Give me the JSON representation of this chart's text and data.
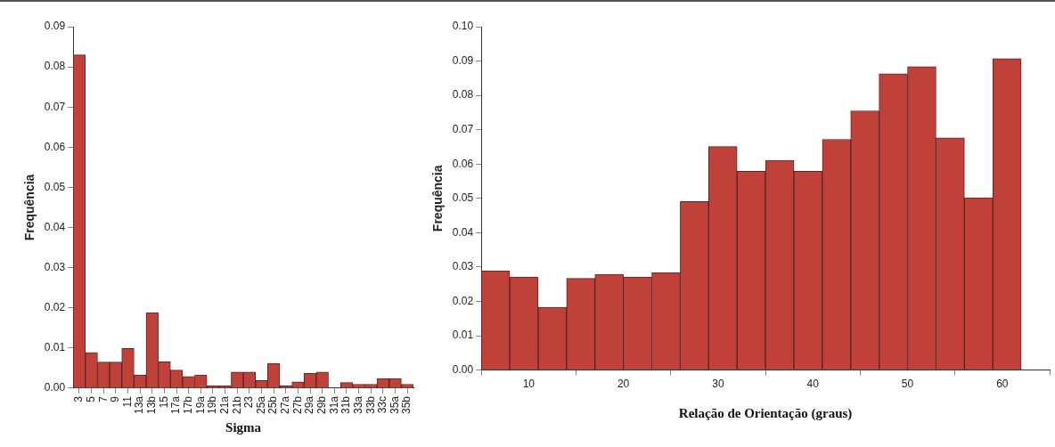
{
  "chart_data": [
    {
      "type": "bar",
      "xlabel": "Sigma",
      "ylabel": "Frequência",
      "color": "#c0403a",
      "grid": false,
      "legend": false,
      "categories": [
        "3",
        "5",
        "7",
        "9",
        "11",
        "13a",
        "13b",
        "15",
        "17a",
        "17b",
        "19a",
        "19b",
        "21a",
        "21b",
        "23",
        "25a",
        "25b",
        "27a",
        "27b",
        "29a",
        "29b",
        "31a",
        "31b",
        "33a",
        "33b",
        "33c",
        "35a",
        "35b"
      ],
      "values": [
        0.083,
        0.0089,
        0.0065,
        0.0065,
        0.0099,
        0.0033,
        0.0188,
        0.0066,
        0.0045,
        0.0029,
        0.0033,
        0.0006,
        0.0006,
        0.004,
        0.004,
        0.0019,
        0.0062,
        0.0006,
        0.0016,
        0.0037,
        0.004,
        0,
        0.0014,
        0.001,
        0.001,
        0.0024,
        0.0024,
        0.001
      ],
      "ylim": [
        0,
        0.09
      ],
      "yticks": [
        {
          "value": 0,
          "label": "0.00"
        },
        {
          "value": 0.01,
          "label": "0.01"
        },
        {
          "value": 0.02,
          "label": "0.02"
        },
        {
          "value": 0.03,
          "label": "0.03"
        },
        {
          "value": 0.04,
          "label": "0.04"
        },
        {
          "value": 0.05,
          "label": "0.05"
        },
        {
          "value": 0.06,
          "label": "0.06"
        },
        {
          "value": 0.07,
          "label": "0.07"
        },
        {
          "value": 0.08,
          "label": "0.08"
        },
        {
          "value": 0.09,
          "label": "0.09"
        }
      ]
    },
    {
      "type": "histogram",
      "xlabel": "Relação de Orientação (graus)",
      "ylabel": "Frequência",
      "color": "#c0403a",
      "grid": false,
      "legend": false,
      "bins": [
        5,
        8,
        11,
        14,
        17,
        20,
        23,
        26,
        29,
        32,
        35,
        38,
        41,
        44,
        47,
        50,
        53,
        56,
        59,
        62,
        65
      ],
      "values": [
        0.0289,
        0.0271,
        0.0183,
        0.0267,
        0.0279,
        0.0271,
        0.0284,
        0.0491,
        0.0651,
        0.0579,
        0.0611,
        0.0579,
        0.0672,
        0.0755,
        0.0863,
        0.0884,
        0.0676,
        0.0502,
        0.0907,
        0
      ],
      "xlim": [
        5,
        65
      ],
      "xticks": [
        10,
        20,
        30,
        40,
        50,
        60
      ],
      "ylim": [
        0,
        0.1
      ],
      "yticks": [
        {
          "value": 0,
          "label": "0.00"
        },
        {
          "value": 0.01,
          "label": "0.01"
        },
        {
          "value": 0.02,
          "label": "0.02"
        },
        {
          "value": 0.03,
          "label": "0.03"
        },
        {
          "value": 0.04,
          "label": "0.04"
        },
        {
          "value": 0.05,
          "label": "0.05"
        },
        {
          "value": 0.06,
          "label": "0.06"
        },
        {
          "value": 0.07,
          "label": "0.07"
        },
        {
          "value": 0.08,
          "label": "0.08"
        },
        {
          "value": 0.09,
          "label": "0.09"
        },
        {
          "value": 0.1,
          "label": "0.10"
        }
      ]
    }
  ]
}
